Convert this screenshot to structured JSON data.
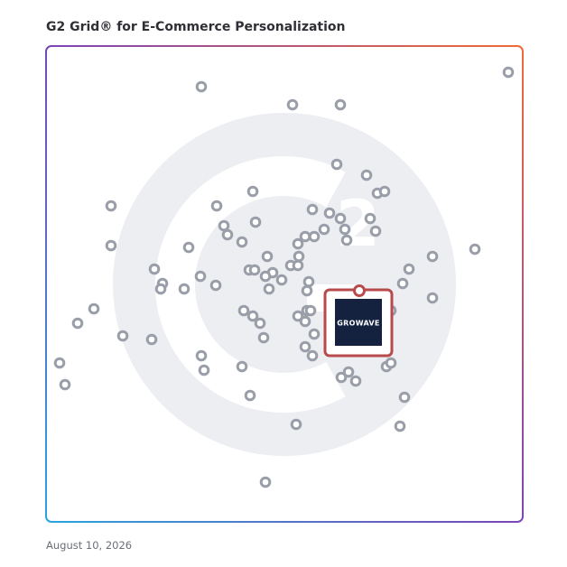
{
  "header": {
    "title": "G2 Grid® for E-Commerce Personalization"
  },
  "highlight": {
    "logo": "GROWAVE"
  },
  "footer": {
    "date": "August 10, 2026"
  }
}
